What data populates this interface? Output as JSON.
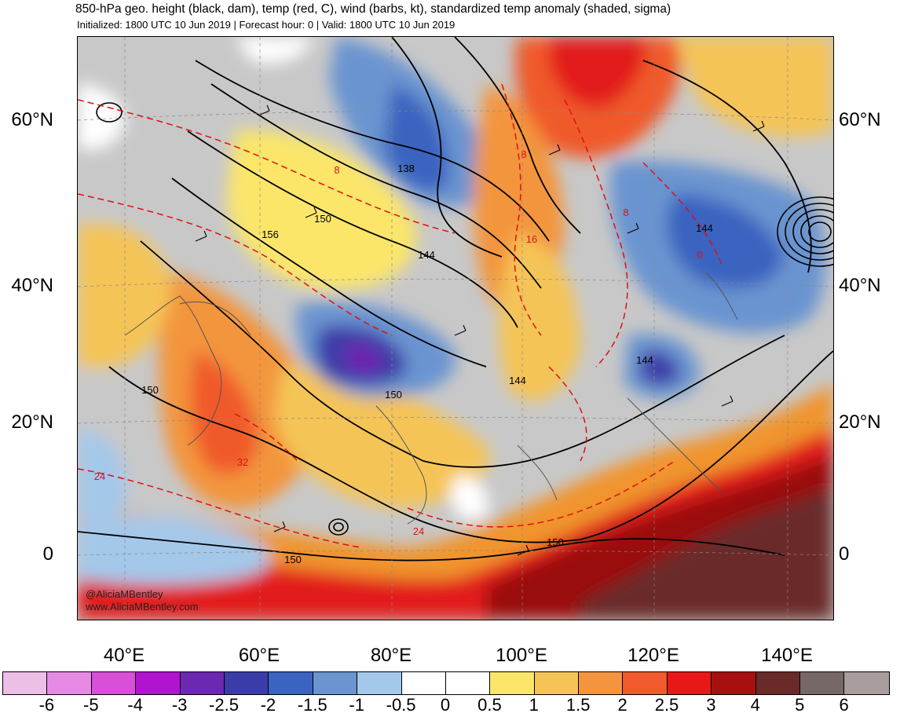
{
  "header": {
    "title": "850-hPa geo. height (black, dam), temp (red, C), wind (barbs, kt), standardized temp anomaly (shaded, sigma)",
    "subtitle": "Initialized: 1800 UTC 10 Jun 2019 | Forecast hour: 0 | Valid: 1800 UTC 10 Jun 2019"
  },
  "axes": {
    "lat_labels": [
      "60°N",
      "40°N",
      "20°N",
      "0"
    ],
    "lon_labels": [
      "40°E",
      "60°E",
      "80°E",
      "100°E",
      "120°E",
      "140°E"
    ]
  },
  "contour_labels": {
    "height": [
      "138",
      "150",
      "156",
      "144",
      "144",
      "150",
      "150",
      "144",
      "144",
      "150",
      "150"
    ],
    "temp": [
      "8",
      "8",
      "16",
      "8",
      "0",
      "32",
      "24",
      "24"
    ]
  },
  "credits": {
    "handle": "@AliciaMBentley",
    "website": "www.AliciaMBentley.com"
  },
  "colorbar": {
    "colors": [
      "#ebbfe6",
      "#e68ae6",
      "#d84fd8",
      "#b014d0",
      "#6b28b0",
      "#3c3ca8",
      "#3a64c0",
      "#6b94d0",
      "#a4c8ea",
      "#ffffff",
      "#ffffff",
      "#fbe66a",
      "#f5c457",
      "#f3953e",
      "#f05a2c",
      "#e81818",
      "#a80f0f",
      "#6b2a2a",
      "#766866",
      "#a89c9c"
    ],
    "labels": [
      "-6",
      "-5",
      "-4",
      "-3",
      "-2.5",
      "-2",
      "-1.5",
      "-1",
      "-0.5",
      "0",
      "0.5",
      "1",
      "1.5",
      "2",
      "2.5",
      "3",
      "4",
      "5",
      "6"
    ]
  }
}
